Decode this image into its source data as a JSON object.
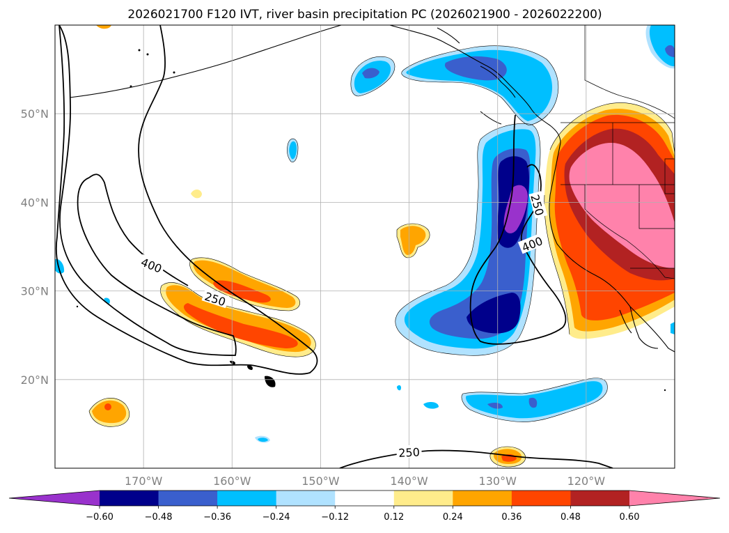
{
  "figure": {
    "title": "2026021700 F120 IVT, river basin precipitation PC (2026021900 - 2026022200)"
  },
  "map": {
    "lon_range": [
      -180,
      -110
    ],
    "lat_range": [
      10,
      60
    ],
    "lon_ticks": [
      {
        "value": -170,
        "label": "170°W"
      },
      {
        "value": -160,
        "label": "160°W"
      },
      {
        "value": -150,
        "label": "150°W"
      },
      {
        "value": -140,
        "label": "140°W"
      },
      {
        "value": -130,
        "label": "130°W"
      },
      {
        "value": -120,
        "label": "120°W"
      }
    ],
    "lat_ticks": [
      {
        "value": 20,
        "label": "20°N"
      },
      {
        "value": 30,
        "label": "30°N"
      },
      {
        "value": 40,
        "label": "40°N"
      },
      {
        "value": 50,
        "label": "50°N"
      }
    ],
    "ivt_contour_labels": [
      {
        "text": "400",
        "lon": -169.1,
        "lat": 32.9,
        "rotate": 22
      },
      {
        "text": "250",
        "lon": -161.9,
        "lat": 29.1,
        "rotate": 18
      },
      {
        "text": "250",
        "lon": -125.5,
        "lat": 39.7,
        "rotate": 75
      },
      {
        "text": "400",
        "lon": -126.1,
        "lat": 35.3,
        "rotate": -22
      },
      {
        "text": "250",
        "lon": -140.0,
        "lat": 11.8,
        "rotate": -3
      }
    ]
  },
  "colorbar": {
    "ticks": [
      "−0.60",
      "−0.48",
      "−0.36",
      "−0.24",
      "−0.12",
      "0.12",
      "0.24",
      "0.36",
      "0.48",
      "0.60"
    ],
    "levels": [
      -0.6,
      -0.48,
      -0.36,
      -0.24,
      -0.12,
      0.12,
      0.24,
      0.36,
      0.48,
      0.6
    ],
    "colors": [
      "#9932cc",
      "#00008b",
      "#3a5fcd",
      "#00bfff",
      "#b0e2ff",
      "#ffffff",
      "#ffec8b",
      "#ffa500",
      "#ff4500",
      "#b22222",
      "#ff82ab"
    ],
    "extend": "both"
  }
}
